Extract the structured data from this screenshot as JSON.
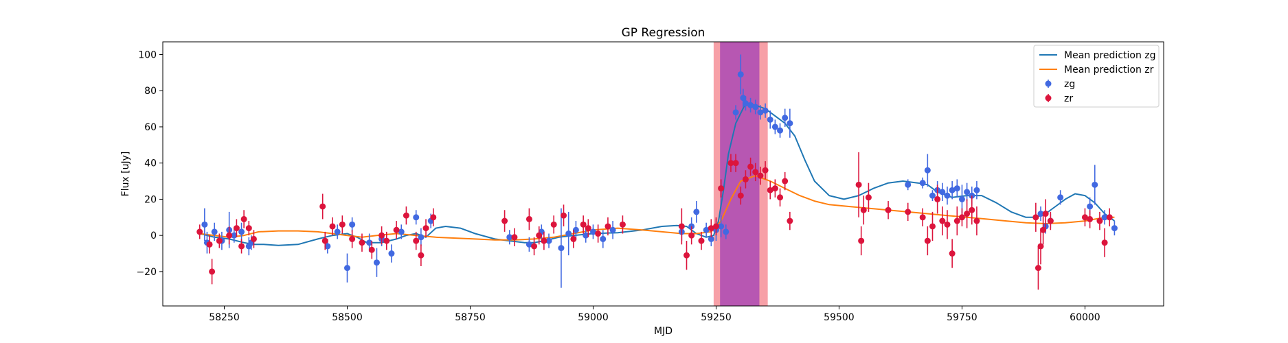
{
  "chart_data": {
    "type": "scatter",
    "title": "GP Regression",
    "xlabel": "MJD",
    "ylabel": "Flux [uJy]",
    "xlim": [
      58125,
      60160
    ],
    "ylim": [
      -39,
      107
    ],
    "xticks": [
      58250,
      58500,
      58750,
      59000,
      59250,
      59500,
      59750,
      60000
    ],
    "yticks": [
      -20,
      0,
      20,
      40,
      60,
      80,
      100
    ],
    "legend_position": "top-right",
    "colors": {
      "zg_points": "#4169e1",
      "zr_points": "#dc143c",
      "zg_line": "#1f77b4",
      "zr_line": "#ff7f0e",
      "band_outer": "#f4808a",
      "band_inner": "#a23fb5"
    },
    "shaded_regions": [
      {
        "x0": 59245,
        "x1": 59355,
        "color": "#f4808a",
        "alpha": 0.75
      },
      {
        "x0": 59258,
        "x1": 59338,
        "color": "#a23fb5",
        "alpha": 0.75
      }
    ],
    "series": [
      {
        "name": "Mean prediction zg",
        "kind": "line",
        "color": "#1f77b4",
        "x": [
          58200,
          58230,
          58260,
          58290,
          58310,
          58330,
          58360,
          58400,
          58440,
          58470,
          58500,
          58520,
          58540,
          58570,
          58600,
          58620,
          58640,
          58660,
          58680,
          58700,
          58730,
          58760,
          58800,
          58830,
          58860,
          58880,
          58900,
          58930,
          58960,
          59000,
          59050,
          59100,
          59140,
          59170,
          59190,
          59210,
          59230,
          59245,
          59255,
          59265,
          59275,
          59290,
          59310,
          59330,
          59350,
          59370,
          59390,
          59410,
          59430,
          59450,
          59480,
          59510,
          59540,
          59570,
          59600,
          59630,
          59660,
          59680,
          59700,
          59730,
          59760,
          59790,
          59820,
          59850,
          59880,
          59900,
          59920,
          59940,
          59960,
          59980,
          60000,
          60020,
          60040,
          60060
        ],
        "y": [
          1,
          -1,
          -2,
          -4,
          -5,
          -5,
          -5.5,
          -5,
          -2,
          0,
          1,
          -1,
          -4,
          -4,
          -2,
          0,
          1,
          -1,
          4,
          5,
          4,
          1,
          -2,
          -3,
          -4,
          -4,
          -3,
          -1,
          0,
          1,
          1.5,
          3,
          5,
          5.5,
          5,
          1,
          -1,
          0,
          8,
          25,
          45,
          62,
          73,
          72,
          70,
          66,
          62,
          55,
          42,
          30,
          22,
          20,
          22,
          26,
          29,
          30,
          29,
          28,
          24,
          21,
          22,
          22,
          18,
          13,
          10,
          10,
          12,
          16,
          20,
          23,
          22,
          18,
          12,
          8
        ]
      },
      {
        "name": "Mean prediction zr",
        "kind": "line",
        "color": "#ff7f0e",
        "x": [
          58200,
          58230,
          58260,
          58290,
          58320,
          58360,
          58400,
          58440,
          58470,
          58500,
          58530,
          58560,
          58600,
          58640,
          58680,
          58720,
          58760,
          58800,
          58840,
          58880,
          58920,
          58960,
          59000,
          59050,
          59100,
          59140,
          59180,
          59210,
          59240,
          59260,
          59280,
          59300,
          59330,
          59360,
          59390,
          59420,
          59450,
          59480,
          59520,
          59560,
          59600,
          59640,
          59680,
          59720,
          59760,
          59800,
          59840,
          59880,
          59920,
          59960,
          60000,
          60040,
          60060
        ],
        "y": [
          1,
          0,
          -1,
          0,
          2,
          2.5,
          2.5,
          2,
          1,
          0,
          -1,
          0,
          1,
          0,
          -1,
          -1.5,
          -2,
          -2.5,
          -2.5,
          -2,
          -1,
          1,
          3,
          4,
          3,
          2,
          1,
          1,
          2,
          8,
          20,
          30,
          33,
          30,
          26,
          22,
          19,
          17,
          16,
          15,
          14,
          13,
          12,
          11,
          10,
          9,
          8,
          7,
          6.5,
          7,
          8,
          10,
          10
        ]
      },
      {
        "name": "zg",
        "kind": "errorbar",
        "color": "#4169e1",
        "x": [
          58210,
          58215,
          58230,
          58245,
          58260,
          58270,
          58285,
          58300,
          58305,
          58460,
          58480,
          58500,
          58510,
          58545,
          58560,
          58570,
          58590,
          58610,
          58640,
          58650,
          58670,
          58830,
          58870,
          58895,
          58910,
          58935,
          58950,
          58965,
          58985,
          59000,
          59020,
          59040,
          59180,
          59200,
          59210,
          59230,
          59240,
          59250,
          59260,
          59270,
          59290,
          59300,
          59305,
          59310,
          59320,
          59330,
          59340,
          59350,
          59360,
          59370,
          59380,
          59390,
          59400,
          59640,
          59670,
          59680,
          59690,
          59700,
          59710,
          59720,
          59730,
          59740,
          59750,
          59760,
          59770,
          59780,
          59910,
          59920,
          59930,
          59950,
          60010,
          60020,
          60040,
          60060
        ],
        "y": [
          6,
          -4,
          2,
          -3,
          3,
          0,
          2,
          -6,
          -4,
          -6,
          2,
          -18,
          6,
          -4,
          -15,
          -2,
          -10,
          2,
          10,
          -1,
          8,
          -1,
          -5,
          2,
          -3,
          -7,
          1,
          3,
          0,
          2,
          -2,
          3,
          2,
          5,
          13,
          3,
          -2,
          3,
          5,
          2,
          68,
          89,
          76,
          73,
          72,
          71,
          68,
          69,
          64,
          60,
          58,
          65,
          62,
          28,
          29,
          36,
          22,
          25,
          24,
          22,
          25,
          26,
          20,
          24,
          22,
          25,
          12,
          5,
          8,
          21,
          16,
          28,
          10,
          4
        ],
        "yerr": [
          9,
          6,
          5,
          5,
          10,
          4,
          5,
          5,
          4,
          4,
          4,
          8,
          4,
          5,
          8,
          4,
          5,
          4,
          4,
          5,
          4,
          4,
          4,
          4,
          4,
          22,
          12,
          5,
          4,
          4,
          5,
          5,
          5,
          5,
          6,
          4,
          4,
          6,
          6,
          4,
          4,
          11,
          5,
          4,
          4,
          4,
          4,
          4,
          5,
          4,
          4,
          5,
          8,
          3,
          3,
          9,
          3,
          5,
          5,
          5,
          5,
          5,
          8,
          5,
          5,
          5,
          4,
          4,
          4,
          4,
          5,
          11,
          4,
          4
        ]
      },
      {
        "name": "zr",
        "kind": "errorbar",
        "color": "#dc143c",
        "x": [
          58200,
          58220,
          58225,
          58240,
          58260,
          58275,
          58285,
          58290,
          58300,
          58310,
          58450,
          58455,
          58470,
          58490,
          58510,
          58530,
          58550,
          58570,
          58580,
          58600,
          58620,
          58640,
          58650,
          58660,
          58675,
          58820,
          58840,
          58870,
          58880,
          58890,
          58900,
          58920,
          58940,
          58960,
          58980,
          58990,
          59010,
          59030,
          59060,
          59180,
          59190,
          59200,
          59220,
          59240,
          59250,
          59260,
          59280,
          59290,
          59300,
          59310,
          59320,
          59330,
          59340,
          59350,
          59360,
          59370,
          59380,
          59390,
          59400,
          59540,
          59545,
          59550,
          59560,
          59600,
          59640,
          59670,
          59680,
          59690,
          59700,
          59710,
          59720,
          59730,
          59740,
          59750,
          59760,
          59770,
          59780,
          59900,
          59905,
          59910,
          59915,
          59920,
          59930,
          60000,
          60010,
          60030,
          60040,
          60050
        ],
        "y": [
          2,
          -5,
          -20,
          -3,
          0,
          4,
          -6,
          9,
          4,
          -2,
          16,
          -3,
          5,
          6,
          -2,
          -4,
          -8,
          0,
          -3,
          3,
          11,
          -3,
          -11,
          4,
          10,
          8,
          -1,
          9,
          -6,
          0,
          -3,
          6,
          11,
          -2,
          6,
          4,
          1,
          5,
          6,
          5,
          -11,
          0,
          -3,
          4,
          5,
          26,
          40,
          40,
          22,
          31,
          38,
          35,
          33,
          36,
          25,
          26,
          21,
          30,
          8,
          28,
          -3,
          14,
          21,
          14,
          13,
          10,
          -3,
          5,
          20,
          8,
          6,
          -10,
          8,
          10,
          12,
          14,
          8,
          10,
          -18,
          -6,
          3,
          12,
          8,
          10,
          9,
          8,
          -4,
          10
        ],
        "yerr": [
          4,
          5,
          7,
          4,
          5,
          5,
          4,
          5,
          4,
          5,
          7,
          5,
          5,
          5,
          5,
          5,
          5,
          5,
          5,
          5,
          5,
          5,
          6,
          5,
          5,
          6,
          5,
          6,
          5,
          5,
          5,
          5,
          6,
          5,
          5,
          5,
          5,
          5,
          5,
          10,
          8,
          5,
          5,
          5,
          5,
          5,
          5,
          5,
          5,
          5,
          5,
          5,
          5,
          5,
          5,
          5,
          5,
          5,
          5,
          18,
          8,
          8,
          8,
          5,
          5,
          5,
          8,
          8,
          8,
          8,
          8,
          8,
          8,
          5,
          8,
          8,
          8,
          8,
          12,
          10,
          8,
          8,
          5,
          5,
          5,
          5,
          8,
          5
        ]
      }
    ]
  }
}
